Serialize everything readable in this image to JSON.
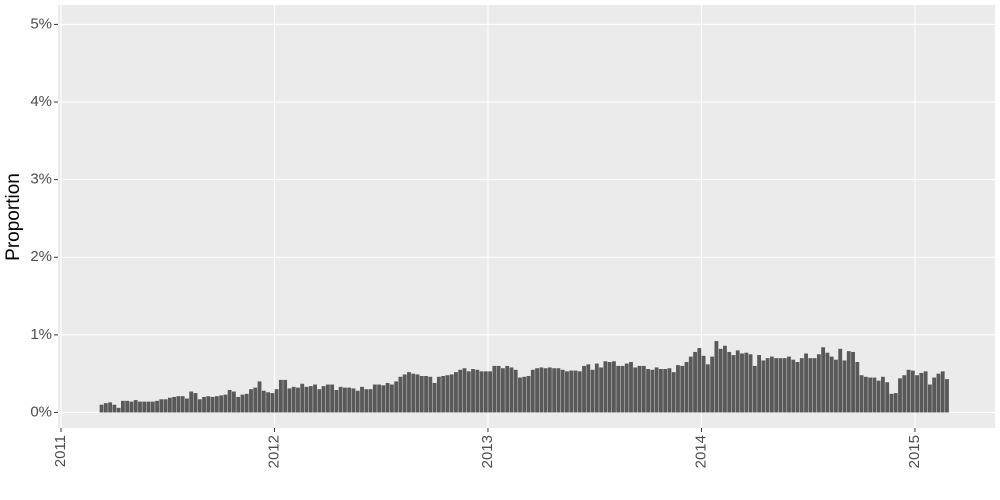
{
  "chart_data": {
    "type": "bar",
    "y_label": "Proportion",
    "color": "#595959",
    "grid": true,
    "xlim": [
      2010.986,
      2015.375
    ],
    "xticks": [
      2011,
      2012,
      2013,
      2014,
      2015
    ],
    "ylim": [
      -0.2,
      5.25
    ],
    "yticks": [
      {
        "value": 0,
        "label": "0%"
      },
      {
        "value": 1,
        "label": "1%"
      },
      {
        "value": 2,
        "label": "2%"
      },
      {
        "value": 3,
        "label": "3%"
      },
      {
        "value": 4,
        "label": "4%"
      },
      {
        "value": 5,
        "label": "5%"
      }
    ],
    "x": [
      2011.19,
      2011.21,
      2011.23,
      2011.25,
      2011.27,
      2011.29,
      2011.31,
      2011.33,
      2011.35,
      2011.37,
      2011.39,
      2011.41,
      2011.43,
      2011.45,
      2011.47,
      2011.49,
      2011.51,
      2011.53,
      2011.55,
      2011.57,
      2011.59,
      2011.61,
      2011.63,
      2011.65,
      2011.67,
      2011.69,
      2011.71,
      2011.73,
      2011.75,
      2011.77,
      2011.79,
      2011.81,
      2011.83,
      2011.85,
      2011.87,
      2011.89,
      2011.91,
      2011.93,
      2011.95,
      2011.97,
      2011.99,
      2012.01,
      2012.03,
      2012.05,
      2012.07,
      2012.09,
      2012.11,
      2012.13,
      2012.15,
      2012.17,
      2012.19,
      2012.21,
      2012.23,
      2012.25,
      2012.27,
      2012.29,
      2012.31,
      2012.33,
      2012.35,
      2012.37,
      2012.39,
      2012.41,
      2012.43,
      2012.45,
      2012.47,
      2012.49,
      2012.51,
      2012.53,
      2012.55,
      2012.57,
      2012.59,
      2012.61,
      2012.63,
      2012.65,
      2012.67,
      2012.69,
      2012.71,
      2012.73,
      2012.75,
      2012.77,
      2012.79,
      2012.81,
      2012.83,
      2012.85,
      2012.87,
      2012.89,
      2012.91,
      2012.93,
      2012.95,
      2012.97,
      2012.99,
      2013.01,
      2013.03,
      2013.05,
      2013.07,
      2013.09,
      2013.11,
      2013.13,
      2013.15,
      2013.17,
      2013.19,
      2013.21,
      2013.23,
      2013.25,
      2013.27,
      2013.29,
      2013.31,
      2013.33,
      2013.35,
      2013.37,
      2013.39,
      2013.41,
      2013.43,
      2013.45,
      2013.47,
      2013.49,
      2013.51,
      2013.53,
      2013.55,
      2013.57,
      2013.59,
      2013.61,
      2013.63,
      2013.65,
      2013.67,
      2013.69,
      2013.71,
      2013.73,
      2013.75,
      2013.77,
      2013.79,
      2013.81,
      2013.83,
      2013.85,
      2013.87,
      2013.89,
      2013.91,
      2013.93,
      2013.95,
      2013.97,
      2013.99,
      2014.01,
      2014.03,
      2014.05,
      2014.07,
      2014.09,
      2014.11,
      2014.13,
      2014.15,
      2014.17,
      2014.19,
      2014.21,
      2014.23,
      2014.25,
      2014.27,
      2014.29,
      2014.31,
      2014.33,
      2014.35,
      2014.37,
      2014.39,
      2014.41,
      2014.43,
      2014.45,
      2014.47,
      2014.49,
      2014.51,
      2014.53,
      2014.55,
      2014.57,
      2014.59,
      2014.61,
      2014.63,
      2014.65,
      2014.67,
      2014.69,
      2014.71,
      2014.73,
      2014.75,
      2014.77,
      2014.79,
      2014.81,
      2014.83,
      2014.85,
      2014.87,
      2014.89,
      2014.91,
      2014.93,
      2014.95,
      2014.97,
      2014.99,
      2015.01,
      2015.03,
      2015.05,
      2015.07,
      2015.09,
      2015.11,
      2015.13,
      2015.15
    ],
    "values": [
      0.1,
      0.12,
      0.13,
      0.1,
      0.06,
      0.15,
      0.15,
      0.14,
      0.16,
      0.14,
      0.14,
      0.14,
      0.14,
      0.15,
      0.17,
      0.17,
      0.19,
      0.2,
      0.21,
      0.21,
      0.18,
      0.27,
      0.25,
      0.17,
      0.2,
      0.21,
      0.2,
      0.21,
      0.22,
      0.23,
      0.29,
      0.27,
      0.2,
      0.23,
      0.24,
      0.3,
      0.32,
      0.4,
      0.28,
      0.26,
      0.25,
      0.3,
      0.42,
      0.42,
      0.31,
      0.33,
      0.32,
      0.37,
      0.33,
      0.34,
      0.36,
      0.3,
      0.34,
      0.36,
      0.36,
      0.29,
      0.33,
      0.32,
      0.32,
      0.31,
      0.28,
      0.33,
      0.3,
      0.3,
      0.36,
      0.36,
      0.35,
      0.38,
      0.36,
      0.4,
      0.46,
      0.49,
      0.52,
      0.5,
      0.49,
      0.47,
      0.47,
      0.46,
      0.38,
      0.46,
      0.47,
      0.48,
      0.49,
      0.52,
      0.55,
      0.57,
      0.53,
      0.56,
      0.55,
      0.53,
      0.53,
      0.53,
      0.6,
      0.6,
      0.57,
      0.6,
      0.58,
      0.55,
      0.45,
      0.46,
      0.47,
      0.55,
      0.57,
      0.58,
      0.57,
      0.58,
      0.57,
      0.57,
      0.55,
      0.53,
      0.54,
      0.54,
      0.53,
      0.6,
      0.62,
      0.55,
      0.63,
      0.58,
      0.66,
      0.65,
      0.66,
      0.6,
      0.6,
      0.63,
      0.65,
      0.58,
      0.6,
      0.6,
      0.56,
      0.55,
      0.58,
      0.56,
      0.56,
      0.57,
      0.52,
      0.61,
      0.6,
      0.65,
      0.72,
      0.78,
      0.83,
      0.73,
      0.62,
      0.72,
      0.92,
      0.82,
      0.86,
      0.78,
      0.74,
      0.8,
      0.76,
      0.77,
      0.75,
      0.6,
      0.74,
      0.67,
      0.7,
      0.72,
      0.7,
      0.7,
      0.7,
      0.72,
      0.68,
      0.65,
      0.7,
      0.76,
      0.7,
      0.7,
      0.75,
      0.84,
      0.77,
      0.72,
      0.68,
      0.82,
      0.67,
      0.79,
      0.78,
      0.65,
      0.48,
      0.46,
      0.45,
      0.45,
      0.41,
      0.46,
      0.39,
      0.24,
      0.25,
      0.44,
      0.48,
      0.55,
      0.54,
      0.48,
      0.51,
      0.53,
      0.36,
      0.45,
      0.5,
      0.53,
      0.43
    ]
  }
}
